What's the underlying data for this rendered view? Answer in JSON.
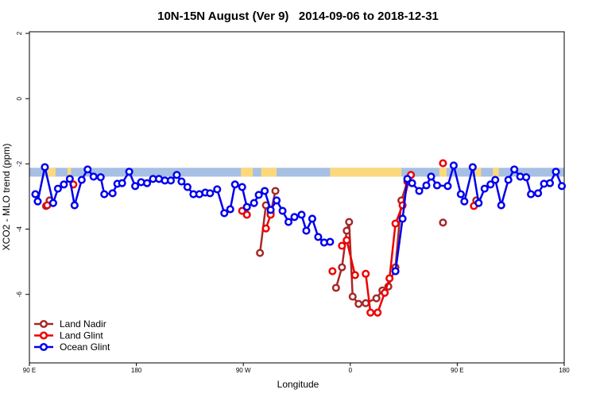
{
  "chart_data": {
    "type": "line",
    "title": "10N-15N August (Ver 9)   2014-09-06 to 2018-12-31",
    "x_label": "Longitude",
    "y_label": "XCO2 - MLO trend (ppm)",
    "xlim": [
      90,
      540
    ],
    "xticks": [
      {
        "value": 90,
        "label": "90 E"
      },
      {
        "value": 180,
        "label": "180"
      },
      {
        "value": 270,
        "label": "90 W"
      },
      {
        "value": 360,
        "label": "0"
      },
      {
        "value": 450,
        "label": "90 E"
      },
      {
        "value": 540,
        "label": "180"
      }
    ],
    "ylim": [
      -8.1,
      2.05
    ],
    "yticks": [
      2,
      0,
      -2,
      -4,
      -6
    ],
    "legend": "bottomleft",
    "band": {
      "ylim": [
        -2.39,
        -2.12
      ],
      "color": "#a7bfe3",
      "land_color": "#fcd97c",
      "land_spans": [
        [
          105,
          112
        ],
        [
          122,
          125
        ],
        [
          268,
          278
        ],
        [
          285,
          298
        ],
        [
          343,
          403
        ],
        [
          435,
          441
        ],
        [
          465,
          470
        ],
        [
          480,
          485
        ]
      ]
    },
    "series": [
      {
        "name": "Land Nadir",
        "color": "#a52a2a",
        "x": [
          104,
          107,
          null,
          284,
          289,
          293,
          297,
          null,
          348,
          353,
          357,
          359,
          362,
          367,
          373,
          382,
          387,
          392,
          398,
          403,
          408,
          null,
          438,
          null,
          466
        ],
        "values": [
          -3.29,
          -3.12,
          null,
          -4.73,
          -3.27,
          -3.51,
          -2.83,
          null,
          -5.8,
          -5.17,
          -4.05,
          -3.78,
          -6.07,
          -6.29,
          -6.27,
          -6.12,
          -5.88,
          -5.76,
          -5.17,
          -3.12,
          -2.54,
          null,
          -3.8,
          null,
          -3.12
        ]
      },
      {
        "name": "Land Glint",
        "color": "#ee0000",
        "x": [
          105,
          null,
          127,
          null,
          269,
          273,
          null,
          289,
          293,
          null,
          345,
          null,
          353,
          357,
          364,
          null,
          373,
          377,
          383,
          389,
          393,
          398,
          404,
          409,
          411,
          null,
          438,
          null,
          464
        ],
        "values": [
          -3.27,
          null,
          -2.63,
          null,
          -3.44,
          -3.56,
          null,
          -3.98,
          -3.56,
          null,
          -5.29,
          null,
          -4.51,
          -4.34,
          -5.41,
          null,
          -5.37,
          -6.56,
          -6.56,
          -5.95,
          -5.51,
          -3.83,
          -3.27,
          -2.54,
          -2.34,
          null,
          -1.98,
          null,
          -3.29
        ]
      },
      {
        "name": "Ocean Glint",
        "color": "#0000ee",
        "x": [
          95,
          97,
          103,
          110,
          114,
          119,
          124,
          128,
          134,
          139,
          144,
          150,
          153,
          160,
          164,
          168,
          174,
          179,
          184,
          189,
          194,
          199,
          204,
          209,
          214,
          218,
          223,
          228,
          233,
          238,
          242,
          248,
          254,
          259,
          263,
          269,
          273,
          279,
          283,
          288,
          293,
          298,
          303,
          308,
          313,
          319,
          323,
          328,
          333,
          338,
          343,
          null,
          398,
          404,
          408,
          412,
          418,
          424,
          428,
          433,
          442,
          447,
          453,
          456,
          463,
          468,
          473,
          478,
          482,
          487,
          493,
          498,
          503,
          508,
          512,
          518,
          523,
          528,
          533,
          538
        ],
        "values": [
          -2.93,
          -3.15,
          -2.1,
          -3.2,
          -2.76,
          -2.63,
          -2.46,
          -3.27,
          -2.49,
          -2.17,
          -2.39,
          -2.41,
          -2.93,
          -2.9,
          -2.61,
          -2.59,
          -2.24,
          -2.68,
          -2.56,
          -2.59,
          -2.46,
          -2.46,
          -2.51,
          -2.51,
          -2.34,
          -2.54,
          -2.71,
          -2.93,
          -2.93,
          -2.88,
          -2.9,
          -2.78,
          -3.51,
          -3.39,
          -2.63,
          -2.71,
          -3.32,
          -3.2,
          -2.95,
          -2.83,
          -3.41,
          -3.12,
          -3.44,
          -3.78,
          -3.63,
          -3.56,
          -4.05,
          -3.68,
          -4.24,
          -4.41,
          -4.39,
          null,
          -5.29,
          -3.68,
          -2.46,
          -2.59,
          -2.83,
          -2.66,
          -2.39,
          -2.66,
          -2.68,
          -2.05,
          -2.93,
          -3.15,
          -2.1,
          -3.2,
          -2.76,
          -2.63,
          -2.49,
          -3.27,
          -2.49,
          -2.17,
          -2.39,
          -2.41,
          -2.93,
          -2.9,
          -2.61,
          -2.59,
          -2.24,
          -2.68
        ]
      }
    ]
  }
}
